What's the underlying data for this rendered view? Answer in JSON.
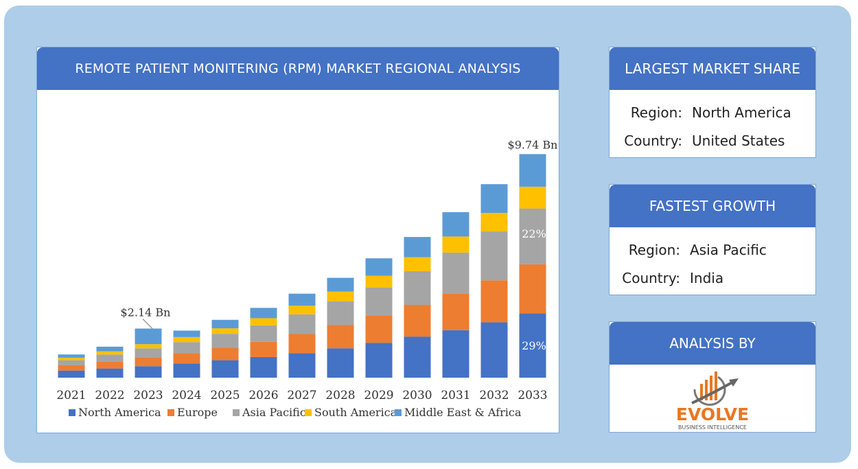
{
  "chart_card": {
    "title": "REMOTE PATIENT MONITERING (RPM) MARKET REGIONAL ANALYSIS"
  },
  "largest_share": {
    "title": "LARGEST MARKET SHARE",
    "region_label": "Region:",
    "region_value": "North America",
    "country_label": "Country:",
    "country_value": "United States"
  },
  "fastest_growth": {
    "title": "FASTEST GROWTH",
    "region_label": "Region:",
    "region_value": "Asia Pacific",
    "country_label": "Country:",
    "country_value": "India"
  },
  "analysis_by": {
    "title": "ANALYSIS BY",
    "logo_text": "EVOLVE",
    "logo_subtext": "BUSINESS INTELLIGENCE"
  },
  "colors": {
    "north_america": "#4472c4",
    "europe": "#ed7d31",
    "asia_pacific": "#a5a5a5",
    "south_america": "#ffc000",
    "middle_east_africa": "#5b9bd5",
    "header": "#4472c4",
    "frame": "#aecde9"
  },
  "chart_data": {
    "type": "bar",
    "stacked": true,
    "categories": [
      "2021",
      "2022",
      "2023",
      "2024",
      "2025",
      "2026",
      "2027",
      "2028",
      "2029",
      "2030",
      "2031",
      "2032",
      "2033"
    ],
    "series": [
      {
        "name": "North America",
        "values": [
          0.31,
          0.4,
          0.5,
          0.62,
          0.76,
          0.9,
          1.07,
          1.28,
          1.52,
          1.79,
          2.07,
          2.41,
          2.8
        ]
      },
      {
        "name": "Europe",
        "values": [
          0.23,
          0.31,
          0.38,
          0.45,
          0.54,
          0.66,
          0.83,
          1.02,
          1.19,
          1.38,
          1.6,
          1.83,
          2.14
        ]
      },
      {
        "name": "Asia Pacific",
        "values": [
          0.22,
          0.3,
          0.4,
          0.48,
          0.61,
          0.72,
          0.86,
          1.02,
          1.22,
          1.47,
          1.78,
          2.13,
          2.43
        ]
      },
      {
        "name": "South America",
        "values": [
          0.11,
          0.14,
          0.18,
          0.22,
          0.24,
          0.31,
          0.38,
          0.43,
          0.51,
          0.61,
          0.7,
          0.81,
          0.95
        ]
      },
      {
        "name": "Middle East & Africa",
        "values": [
          0.14,
          0.2,
          0.68,
          0.28,
          0.37,
          0.45,
          0.52,
          0.6,
          0.76,
          0.88,
          1.06,
          1.25,
          1.42
        ]
      }
    ],
    "ylim": [
      0,
      10.5
    ],
    "grid": false,
    "legend": "bottom",
    "annotations": [
      {
        "category": "2023",
        "text": "$2.14 Bn"
      },
      {
        "category": "2033",
        "text": "$9.74 Bn"
      },
      {
        "category": "2033",
        "series": "Asia Pacific",
        "text": "22%"
      },
      {
        "category": "2033",
        "series": "North America",
        "text": "29%"
      }
    ]
  }
}
